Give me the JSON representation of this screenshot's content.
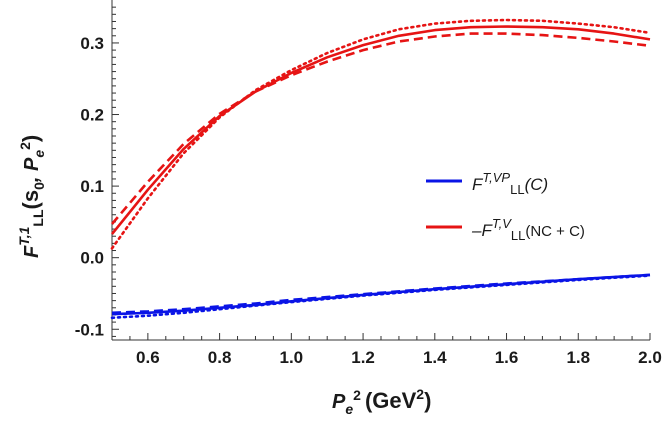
{
  "chart_data": {
    "type": "line",
    "xlabel": "Pe2 (GeV2)",
    "ylabel": "FT,1LL(s0, Pe2)",
    "xlim": [
      0.5,
      2.0
    ],
    "ylim": [
      -0.115,
      0.36
    ],
    "x_ticks": [
      "0.6",
      "0.8",
      "1.0",
      "1.2",
      "1.4",
      "1.6",
      "1.8",
      "2.0"
    ],
    "y_ticks": [
      "-0.1",
      "0.0",
      "0.1",
      "0.2",
      "0.3"
    ],
    "legend_position": "center-right",
    "series": [
      {
        "name": "FT,VPLL(C)",
        "color": "#0a14e6",
        "variants": {
          "solid": {
            "x": [
              0.5,
              0.6,
              0.7,
              0.8,
              0.9,
              1.0,
              1.2,
              1.4,
              1.6,
              1.8,
              2.0
            ],
            "y": [
              -0.079,
              -0.077,
              -0.074,
              -0.07,
              -0.066,
              -0.061,
              -0.052,
              -0.044,
              -0.037,
              -0.03,
              -0.024
            ]
          },
          "dashed": {
            "x": [
              0.5,
              0.6,
              0.7,
              0.8,
              0.9,
              1.0,
              1.2,
              1.4,
              1.6,
              1.8,
              2.0
            ],
            "y": [
              -0.077,
              -0.075,
              -0.072,
              -0.068,
              -0.064,
              -0.059,
              -0.051,
              -0.043,
              -0.036,
              -0.03,
              -0.024
            ]
          },
          "dotted": {
            "x": [
              0.5,
              0.6,
              0.7,
              0.8,
              0.9,
              1.0,
              1.2,
              1.4,
              1.6,
              1.8,
              2.0
            ],
            "y": [
              -0.084,
              -0.081,
              -0.077,
              -0.072,
              -0.067,
              -0.062,
              -0.053,
              -0.045,
              -0.038,
              -0.031,
              -0.025
            ]
          }
        }
      },
      {
        "name": "-FT,VLL(NC + C)",
        "color": "#e61414",
        "variants": {
          "solid": {
            "x": [
              0.5,
              0.6,
              0.7,
              0.8,
              0.9,
              1.0,
              1.1,
              1.2,
              1.3,
              1.4,
              1.5,
              1.6,
              1.7,
              1.8,
              1.9,
              2.0
            ],
            "y": [
              0.033,
              0.095,
              0.152,
              0.198,
              0.232,
              0.258,
              0.28,
              0.297,
              0.31,
              0.318,
              0.322,
              0.323,
              0.322,
              0.319,
              0.313,
              0.305
            ]
          },
          "dashed": {
            "x": [
              0.5,
              0.6,
              0.7,
              0.8,
              0.9,
              1.0,
              1.1,
              1.2,
              1.3,
              1.4,
              1.5,
              1.6,
              1.7,
              1.8,
              1.9,
              2.0
            ],
            "y": [
              0.047,
              0.106,
              0.159,
              0.201,
              0.232,
              0.255,
              0.274,
              0.29,
              0.302,
              0.309,
              0.313,
              0.313,
              0.311,
              0.307,
              0.302,
              0.296
            ]
          },
          "dotted": {
            "x": [
              0.5,
              0.6,
              0.7,
              0.8,
              0.9,
              1.0,
              1.1,
              1.2,
              1.3,
              1.4,
              1.5,
              1.6,
              1.7,
              1.8,
              1.9,
              2.0
            ],
            "y": [
              0.013,
              0.083,
              0.146,
              0.196,
              0.234,
              0.262,
              0.286,
              0.305,
              0.319,
              0.327,
              0.331,
              0.332,
              0.331,
              0.327,
              0.322,
              0.314
            ]
          }
        }
      }
    ]
  },
  "legend": {
    "items": [
      {
        "base": "F",
        "sup": "T,VP",
        "sub": "LL",
        "tail": "(C)"
      },
      {
        "base": "–F",
        "sup": "T,V",
        "sub": "LL",
        "tail": "(NC + C)"
      }
    ]
  },
  "axis_text": {
    "x": {
      "base": "P",
      "sub": "e",
      "sup": "2",
      "open": "(GeV",
      "sup2": "2",
      "close": ")"
    },
    "y": {
      "base": "F",
      "sup": "T,1",
      "sub": "LL",
      "open": "(s",
      "sub0": "0",
      "comma": ", P",
      "sube": "e",
      "sup2": "2",
      "close": ")"
    }
  }
}
